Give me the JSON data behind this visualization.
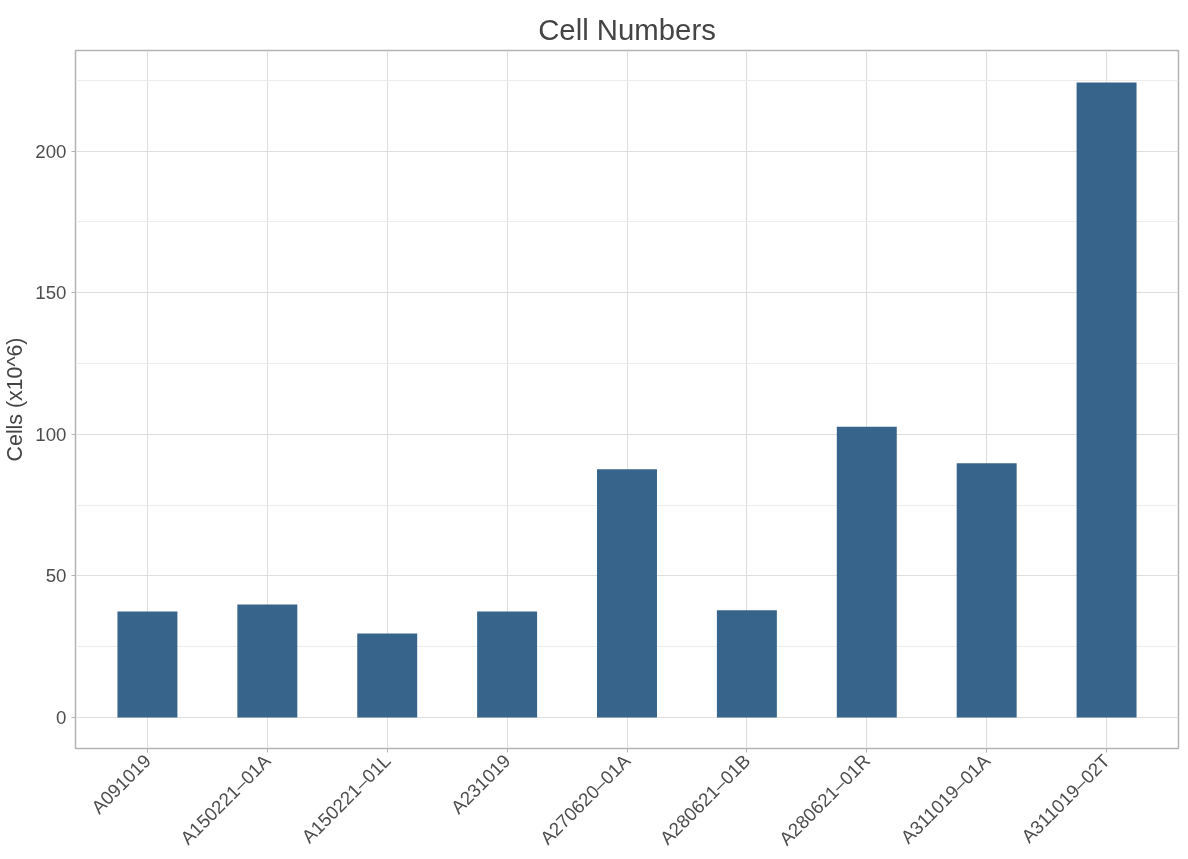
{
  "chart_data": {
    "type": "bar",
    "title": "Cell Numbers",
    "ylabel": "Cells (x10^6)",
    "categories": [
      "A091019",
      "A150221–01A",
      "A150221–01L",
      "A231019",
      "A270620–01A",
      "A280621–01B",
      "A280621–01R",
      "A311019–01A",
      "A311019–02T"
    ],
    "values": [
      37.5,
      39.9,
      29.7,
      37.5,
      87.7,
      37.9,
      102.7,
      89.8,
      224.2
    ],
    "color": "#37648a",
    "ylim": [
      -10.9,
      235.5
    ],
    "yticks": [
      0,
      50,
      100,
      150,
      200
    ],
    "grid": true
  }
}
